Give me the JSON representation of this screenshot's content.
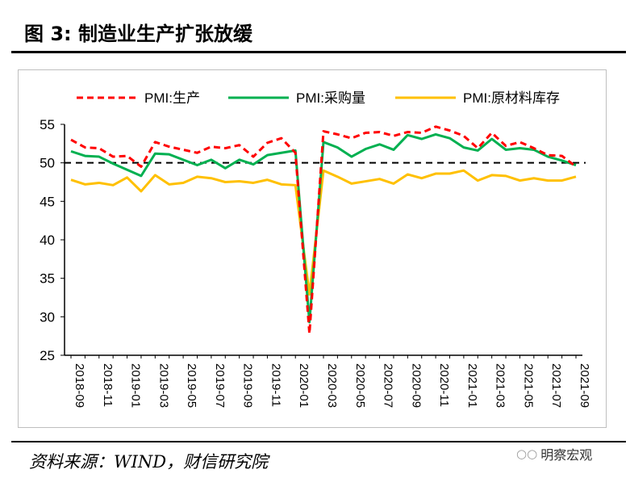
{
  "title": "图 3:  制造业生产扩张放缓",
  "source": "资料来源：WIND，财信研究院",
  "watermark": "明察宏观",
  "chart_data": {
    "type": "line",
    "title": "制造业生产扩张放缓",
    "xlabel": "",
    "ylabel": "",
    "ylim": [
      25,
      55
    ],
    "yticks": [
      25,
      30,
      35,
      40,
      45,
      50,
      55
    ],
    "reference_line": 50,
    "legend_placement": "top",
    "x": [
      "2018-09",
      "2018-10",
      "2018-11",
      "2018-12",
      "2019-01",
      "2019-02",
      "2019-03",
      "2019-04",
      "2019-05",
      "2019-06",
      "2019-07",
      "2019-08",
      "2019-09",
      "2019-10",
      "2019-11",
      "2019-12",
      "2020-01",
      "2020-02",
      "2020-03",
      "2020-04",
      "2020-05",
      "2020-06",
      "2020-07",
      "2020-08",
      "2020-09",
      "2020-10",
      "2020-11",
      "2020-12",
      "2021-01",
      "2021-02",
      "2021-03",
      "2021-04",
      "2021-05",
      "2021-06",
      "2021-07",
      "2021-08",
      "2021-09"
    ],
    "xtick_labels": [
      "2018-09",
      "2018-11",
      "2019-01",
      "2019-03",
      "2019-05",
      "2019-07",
      "2019-09",
      "2019-11",
      "2020-01",
      "2020-03",
      "2020-05",
      "2020-07",
      "2020-09",
      "2020-11",
      "2021-01",
      "2021-03",
      "2021-05",
      "2021-07",
      "2021-09"
    ],
    "series": [
      {
        "name": "PMI:生产",
        "color": "#ff0000",
        "dash": true,
        "values": [
          53.0,
          52.0,
          51.9,
          50.8,
          50.9,
          49.5,
          52.7,
          52.1,
          51.7,
          51.3,
          52.1,
          51.9,
          52.3,
          50.8,
          52.6,
          53.2,
          51.3,
          27.8,
          54.1,
          53.7,
          53.2,
          53.9,
          54.0,
          53.5,
          54.0,
          53.9,
          54.7,
          54.2,
          53.5,
          51.9,
          53.9,
          52.2,
          52.7,
          51.9,
          51.0,
          50.9,
          49.5
        ]
      },
      {
        "name": "PMI:采购量",
        "color": "#00b050",
        "dash": false,
        "values": [
          51.5,
          50.9,
          50.8,
          49.9,
          49.1,
          48.3,
          51.2,
          51.1,
          50.4,
          49.7,
          50.4,
          49.3,
          50.4,
          49.8,
          51.0,
          51.3,
          51.6,
          29.3,
          52.7,
          52.0,
          50.8,
          51.8,
          52.4,
          51.7,
          53.6,
          53.1,
          53.7,
          53.2,
          52.0,
          51.6,
          53.1,
          51.7,
          51.9,
          51.7,
          50.8,
          50.3,
          49.7
        ]
      },
      {
        "name": "PMI:原材料库存",
        "color": "#ffc000",
        "dash": false,
        "values": [
          47.8,
          47.2,
          47.4,
          47.1,
          48.1,
          46.3,
          48.4,
          47.2,
          47.4,
          48.2,
          48.0,
          47.5,
          47.6,
          47.4,
          47.8,
          47.2,
          47.1,
          32.9,
          49.0,
          48.2,
          47.3,
          47.6,
          47.9,
          47.3,
          48.5,
          48.0,
          48.6,
          48.6,
          49.0,
          47.7,
          48.4,
          48.3,
          47.7,
          48.0,
          47.7,
          47.7,
          48.2
        ]
      }
    ]
  }
}
